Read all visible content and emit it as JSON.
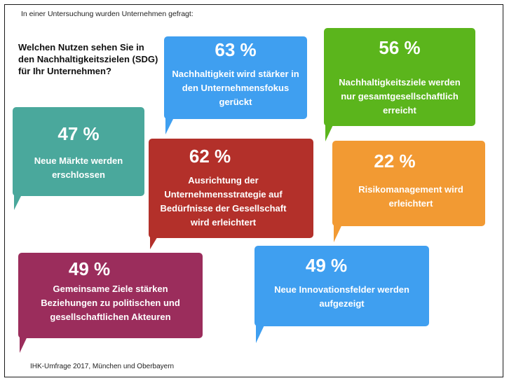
{
  "header": {
    "intro": "In einer Untersuchung wurden Unternehmen gefragt:",
    "question": "Welchen Nutzen sehen Sie in den Nachhaltigkeitszielen (SDG) für Ihr Unternehmen?"
  },
  "colors": {
    "blue": "#3f9ff0",
    "green": "#5bb51c",
    "teal": "#4aa89c",
    "red": "#b3302a",
    "orange": "#f29a33",
    "purple": "#9b2d5c"
  },
  "bubbles": [
    {
      "percent": "63 %",
      "text": "Nachhaltigkeit wird stärker in den Unternehmensfokus gerückt"
    },
    {
      "percent": "56 %",
      "text": "Nachhaltigkeitsziele werden nur gesamtgesellschaftlich erreicht"
    },
    {
      "percent": "47 %",
      "text": "Neue Märkte werden erschlossen"
    },
    {
      "percent": "62 %",
      "text": "Ausrichtung der Unternehmensstrategie auf Bedürfnisse der Gesellschaft wird erleichtert"
    },
    {
      "percent": "22 %",
      "text": "Risikomanagement wird erleichtert"
    },
    {
      "percent": "49 %",
      "text": "Gemeinsame Ziele stärken Beziehungen zu politischen und gesellschaftlichen Akteuren"
    },
    {
      "percent": "49 %",
      "text": "Neue Innovationsfelder werden aufgezeigt"
    }
  ],
  "footer": {
    "source": "IHK-Umfrage 2017, München und Oberbayern"
  }
}
